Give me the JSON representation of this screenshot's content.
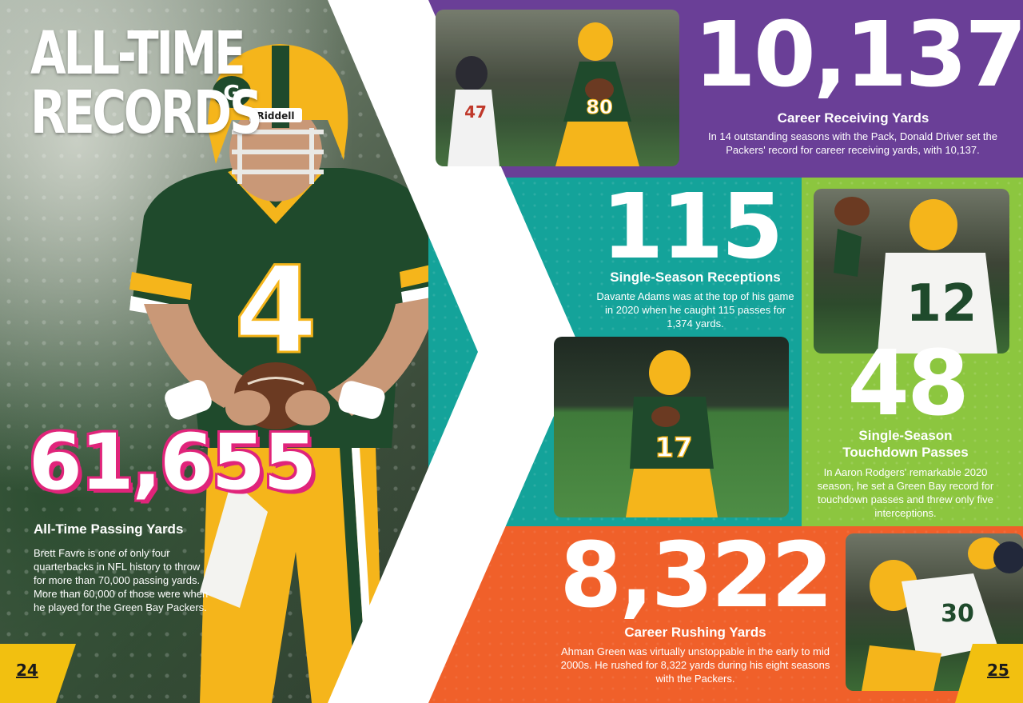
{
  "left_page": {
    "title_line1": "ALL-TIME",
    "title_line2": "RECORDS",
    "stat_value": "61,655",
    "stat_label": "All-Time Passing Yards",
    "description": "Brett Favre is one of only four quarterbacks in NFL history to throw for more than 70,000 passing yards. More than 60,000 of those were when he played for the Green Bay Packers.",
    "page_number": "24",
    "photo_jersey_number": "4",
    "helmet_brand": "Riddell"
  },
  "right_page": {
    "page_number": "25",
    "receiving": {
      "value": "10,137",
      "label": "Career Receiving Yards",
      "description": "In 14 outstanding seasons with the Pack, Donald Driver set the Packers' record for career receiving yards, with 10,137."
    },
    "receptions": {
      "value": "115",
      "label": "Single-Season Receptions",
      "description": "Davante Adams was at the top of his game in 2020 when he caught 115 passes for 1,374 yards.",
      "photo_jersey_number": "17"
    },
    "touchdowns": {
      "value": "48",
      "label_line1": "Single-Season",
      "label_line2": "Touchdown Passes",
      "description": "In Aaron Rodgers' remarkable 2020 season, he set a Green Bay record for touchdown passes and threw only five interceptions.",
      "photo_jersey_number": "12"
    },
    "rushing": {
      "value": "8,322",
      "label": "Career Rushing Yards",
      "description": "Ahman Green was virtually unstoppable in the early to mid 2000s. He rushed for 8,322 yards during his eight seasons with the Packers.",
      "photo_jersey_number": "30"
    }
  },
  "colors": {
    "purple": "#6a3f97",
    "teal": "#14a39a",
    "green": "#8cc63f",
    "orange": "#f0602a",
    "magenta": "#e0247a",
    "gold": "#f2c010",
    "packers_green": "#1f4a2c",
    "packers_gold": "#f5b51b"
  }
}
